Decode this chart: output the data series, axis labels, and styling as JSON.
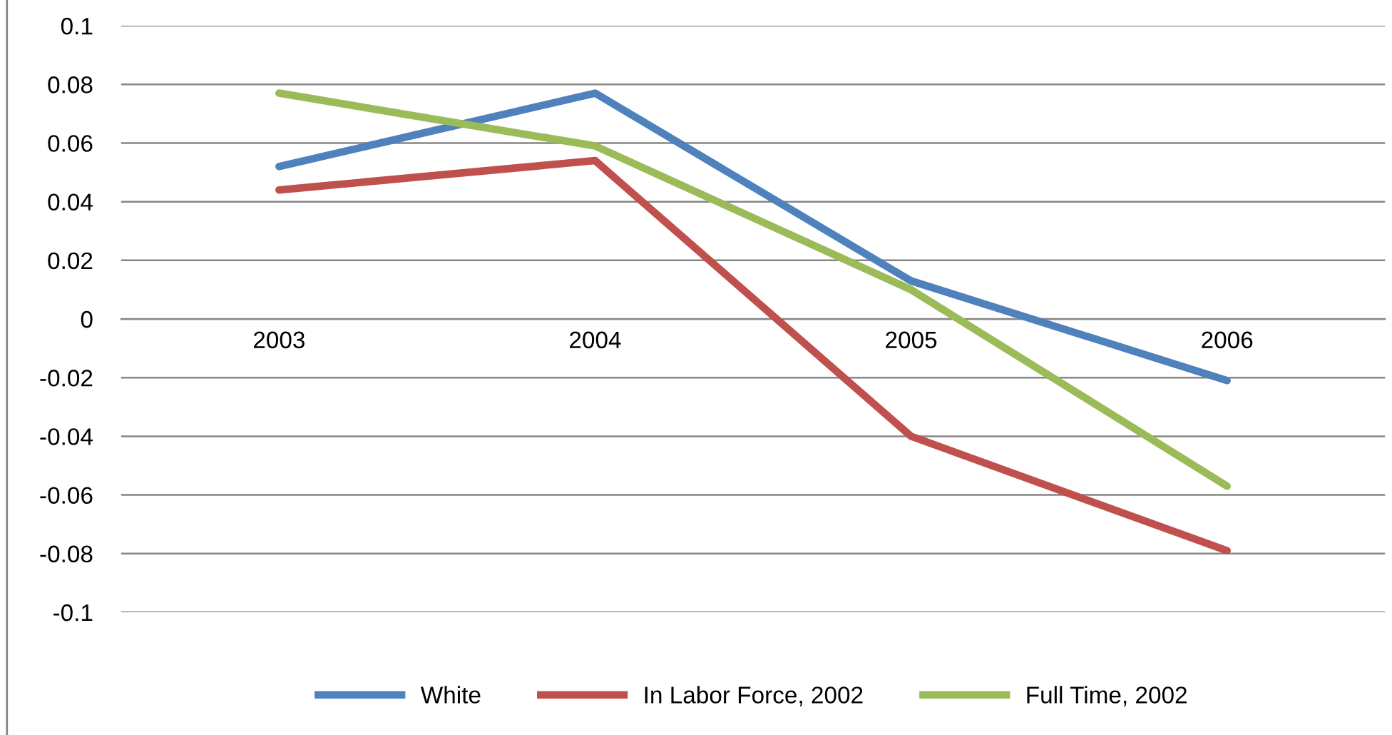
{
  "chart_data": {
    "type": "line",
    "categories": [
      "2003",
      "2004",
      "2005",
      "2006"
    ],
    "series": [
      {
        "name": "White",
        "color": "#4f81bd",
        "values": [
          0.052,
          0.077,
          0.013,
          -0.021
        ]
      },
      {
        "name": "In Labor Force, 2002",
        "color": "#c0504d",
        "values": [
          0.044,
          0.054,
          -0.04,
          -0.079
        ]
      },
      {
        "name": "Full Time, 2002",
        "color": "#9bbb59",
        "values": [
          0.077,
          0.059,
          0.01,
          -0.057
        ]
      }
    ],
    "ylim": [
      -0.1,
      0.1
    ],
    "yticks": [
      0.1,
      0.08,
      0.06,
      0.04,
      0.02,
      0,
      -0.02,
      -0.04,
      -0.06,
      -0.08,
      -0.1
    ],
    "grid": "y",
    "legend": "bottom",
    "marker": "none",
    "line_style": "solid"
  }
}
